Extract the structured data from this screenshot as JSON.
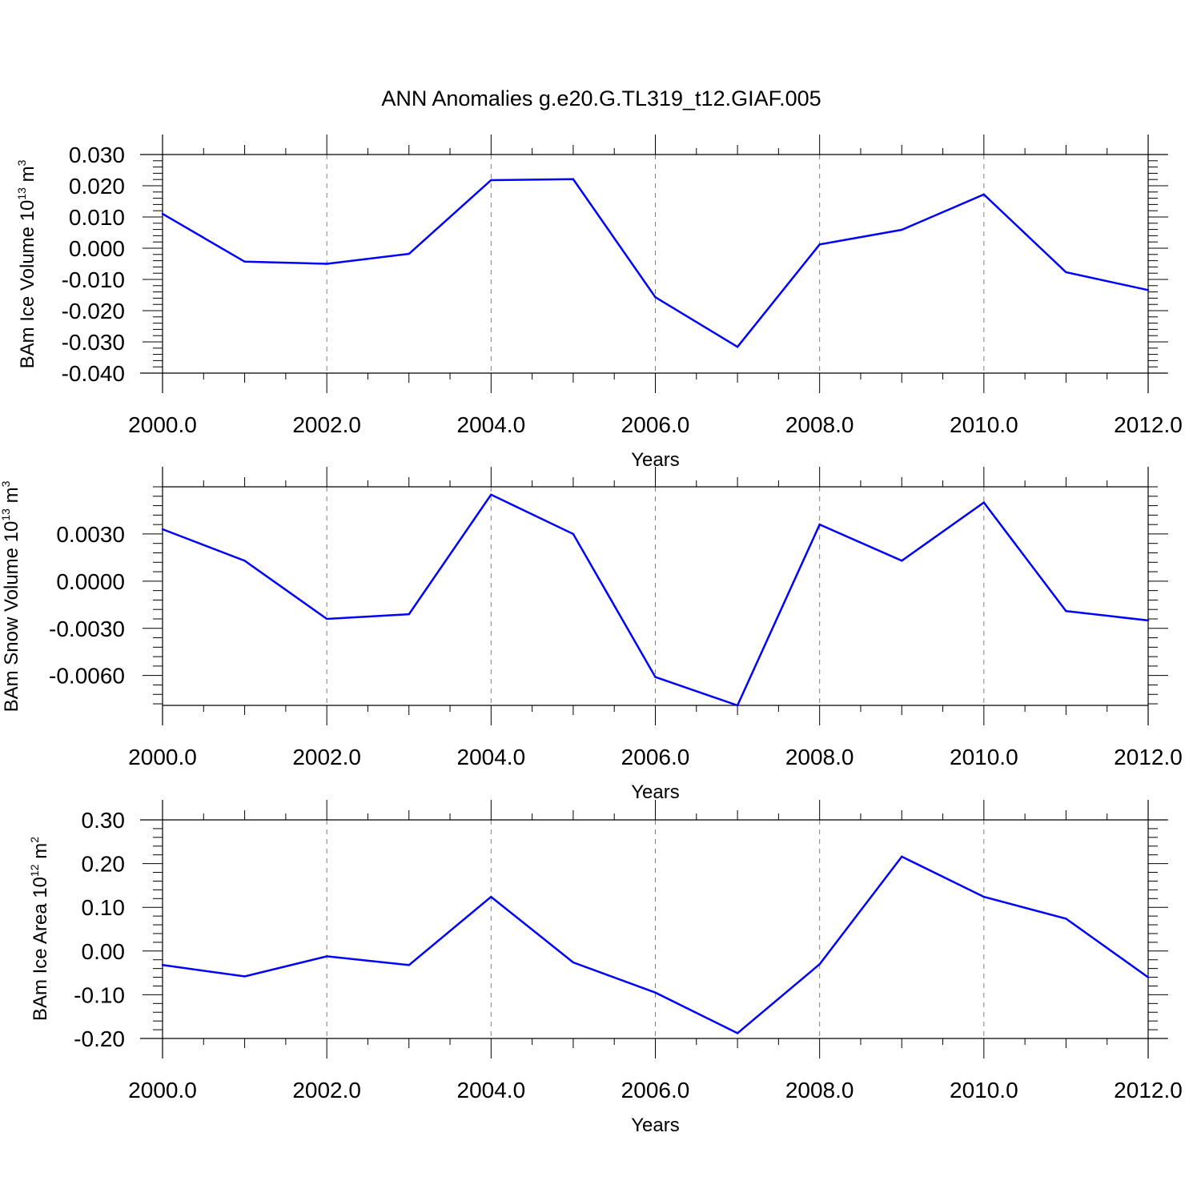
{
  "title": "ANN Anomalies g.e20.G.TL319_t12.GIAF.005",
  "colors": {
    "series": "#0000ff",
    "axes": "#000000",
    "grid": "#808080"
  },
  "chart_data": [
    {
      "type": "line",
      "ylabel": {
        "main": "BAm Ice Volume 10",
        "exp": "13",
        "unit": " m",
        "unit_exp": "3"
      },
      "xlabel": "Years",
      "xlim": [
        2000,
        2012
      ],
      "ylim": [
        -0.04,
        0.03
      ],
      "xticks": [
        "2000.0",
        "2002.0",
        "2004.0",
        "2006.0",
        "2008.0",
        "2010.0",
        "2012.0"
      ],
      "yticks": [
        "0.030",
        "0.020",
        "0.010",
        "0.000",
        "-0.010",
        "-0.020",
        "-0.030",
        "-0.040"
      ],
      "ytick_values": [
        0.03,
        0.02,
        0.01,
        0.0,
        -0.01,
        -0.02,
        -0.03,
        -0.04
      ],
      "grid": "vertical dashed at labeled years",
      "x": [
        2000,
        2001,
        2002,
        2003,
        2004,
        2005,
        2006,
        2007,
        2008,
        2009,
        2010,
        2011,
        2012
      ],
      "y": [
        0.011,
        -0.0043,
        -0.005,
        -0.0018,
        0.0218,
        0.0221,
        -0.0157,
        -0.0316,
        0.0012,
        0.0059,
        0.0172,
        -0.0077,
        -0.0134
      ]
    },
    {
      "type": "line",
      "ylabel": {
        "main": "BAm Snow Volume 10",
        "exp": "13",
        "unit": " m",
        "unit_exp": "3"
      },
      "xlabel": "Years",
      "xlim": [
        2000,
        2012
      ],
      "ylim": [
        -0.0079,
        0.006
      ],
      "xticks": [
        "2000.0",
        "2002.0",
        "2004.0",
        "2006.0",
        "2008.0",
        "2010.0",
        "2012.0"
      ],
      "yticks": [
        "0.0030",
        "0.0000",
        "-0.0030",
        "-0.0060"
      ],
      "ytick_values": [
        0.003,
        0.0,
        -0.003,
        -0.006
      ],
      "grid": "vertical dashed at labeled years",
      "x": [
        2000,
        2001,
        2002,
        2003,
        2004,
        2005,
        2006,
        2007,
        2008,
        2009,
        2010,
        2011,
        2012
      ],
      "y": [
        0.0033,
        0.0013,
        -0.0024,
        -0.0021,
        0.0055,
        0.003,
        -0.0061,
        -0.0079,
        0.0036,
        0.0013,
        0.005,
        -0.0019,
        -0.0025
      ]
    },
    {
      "type": "line",
      "ylabel": {
        "main": "BAm Ice Area 10",
        "exp": "12",
        "unit": " m",
        "unit_exp": "2"
      },
      "xlabel": "Years",
      "xlim": [
        2000,
        2012
      ],
      "ylim": [
        -0.2,
        0.3
      ],
      "xticks": [
        "2000.0",
        "2002.0",
        "2004.0",
        "2006.0",
        "2008.0",
        "2010.0",
        "2012.0"
      ],
      "yticks": [
        "0.30",
        "0.20",
        "0.10",
        "0.00",
        "-0.10",
        "-0.20"
      ],
      "ytick_values": [
        0.3,
        0.2,
        0.1,
        0.0,
        -0.1,
        -0.2
      ],
      "grid": "vertical dashed at labeled years",
      "x": [
        2000,
        2001,
        2002,
        2003,
        2004,
        2005,
        2006,
        2007,
        2008,
        2009,
        2010,
        2011,
        2012
      ],
      "y": [
        -0.032,
        -0.058,
        -0.012,
        -0.032,
        0.124,
        -0.026,
        -0.095,
        -0.188,
        -0.03,
        0.216,
        0.124,
        0.074,
        -0.06
      ]
    }
  ]
}
